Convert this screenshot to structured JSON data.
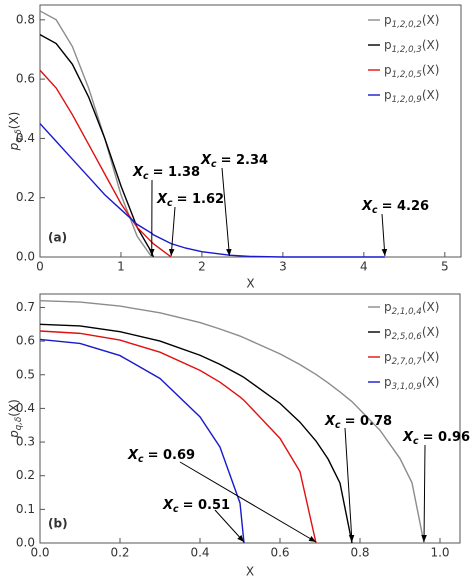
{
  "chart_data": [
    {
      "type": "line",
      "panel_label": "(a)",
      "x_label": "X",
      "y_label": {
        "main": "p",
        "sub": "q,δ",
        "tail": "(X)"
      },
      "xlim": [
        0,
        5.2
      ],
      "ylim": [
        0,
        0.85
      ],
      "xticks": [
        0,
        1,
        2,
        3,
        4,
        5
      ],
      "yticks": [
        {
          "value": 0,
          "label": "0.0"
        },
        0.2,
        0.4,
        0.6,
        0.8
      ],
      "legend": "top-right",
      "grid": false,
      "x": [
        0,
        0.2,
        0.4,
        0.6,
        0.8,
        1.0,
        1.2,
        1.38,
        1.4,
        1.62,
        1.8,
        2.0,
        2.34,
        2.6,
        3.0,
        3.5,
        4.0,
        4.26
      ],
      "series": [
        {
          "name": {
            "main": "p",
            "sub": "1,2,0,2",
            "tail": "(X)"
          },
          "color": "#8c8c8c",
          "values": [
            0.83,
            0.8,
            0.71,
            0.57,
            0.4,
            0.21,
            0.07,
            0.0,
            null,
            null,
            null,
            null,
            null,
            null,
            null,
            null,
            null,
            null
          ]
        },
        {
          "name": {
            "main": "p",
            "sub": "1,2,0,3",
            "tail": "(X)"
          },
          "color": "#000000",
          "values": [
            0.75,
            0.72,
            0.65,
            0.54,
            0.4,
            0.24,
            0.1,
            0.015,
            0.0,
            null,
            null,
            null,
            null,
            null,
            null,
            null,
            null,
            null
          ]
        },
        {
          "name": {
            "main": "p",
            "sub": "1,2,0,5",
            "tail": "(X)"
          },
          "color": "#e01010",
          "values": [
            0.63,
            0.57,
            0.48,
            0.38,
            0.28,
            0.18,
            0.1,
            0.05,
            0.045,
            0.0,
            null,
            null,
            null,
            null,
            null,
            null,
            null,
            null
          ]
        },
        {
          "name": {
            "main": "p",
            "sub": "1,2,0,9",
            "tail": "(X)"
          },
          "color": "#1a1acc",
          "values": [
            0.45,
            0.39,
            0.33,
            0.27,
            0.21,
            0.16,
            0.11,
            0.08,
            0.075,
            0.045,
            0.03,
            0.018,
            0.006,
            0.002,
            0.0,
            0.0,
            0.0,
            0.0
          ]
        }
      ],
      "annotations": [
        {
          "symbol": "X",
          "sub": "c",
          "text": "= 1.38",
          "x": 1.38
        },
        {
          "symbol": "X",
          "sub": "c",
          "text": "= 1.62",
          "x": 1.62
        },
        {
          "symbol": "X",
          "sub": "c",
          "text": "= 2.34",
          "x": 2.34
        },
        {
          "symbol": "X",
          "sub": "c",
          "text": "= 4.26",
          "x": 4.26
        }
      ]
    },
    {
      "type": "line",
      "panel_label": "(b)",
      "x_label": "X",
      "y_label": {
        "main": "p",
        "sub": "q,δ",
        "tail": "(X)"
      },
      "xlim": [
        0,
        1.05
      ],
      "ylim": [
        0,
        0.74
      ],
      "xticks": [
        {
          "value": 0,
          "label": "0.0"
        },
        0.2,
        0.4,
        0.6,
        0.8,
        {
          "value": 1,
          "label": "1.0"
        }
      ],
      "yticks": [
        {
          "value": 0,
          "label": "0.0"
        },
        0.1,
        0.2,
        0.3,
        0.4,
        0.5,
        0.6,
        0.7
      ],
      "legend": "top-right",
      "grid": false,
      "x": [
        0,
        0.1,
        0.2,
        0.3,
        0.4,
        0.45,
        0.5,
        0.51,
        0.6,
        0.65,
        0.69,
        0.72,
        0.75,
        0.78,
        0.85,
        0.9,
        0.93,
        0.96
      ],
      "series": [
        {
          "name": {
            "main": "p",
            "sub": "2,1,0,4",
            "tail": "(X)"
          },
          "color": "#8c8c8c",
          "values": [
            0.72,
            0.716,
            0.704,
            0.684,
            0.655,
            0.636,
            0.615,
            0.61,
            0.562,
            0.53,
            0.501,
            0.476,
            0.449,
            0.42,
            0.335,
            0.251,
            0.179,
            0.0
          ]
        },
        {
          "name": {
            "main": "p",
            "sub": "2,5,0,6",
            "tail": "(X)"
          },
          "color": "#000000",
          "values": [
            0.65,
            0.645,
            0.628,
            0.6,
            0.558,
            0.531,
            0.499,
            0.492,
            0.415,
            0.359,
            0.303,
            0.25,
            0.178,
            0.0,
            null,
            null,
            null,
            null
          ]
        },
        {
          "name": {
            "main": "p",
            "sub": "2,7,0,7",
            "tail": "(X)"
          },
          "color": "#e01010",
          "values": [
            0.63,
            0.623,
            0.603,
            0.567,
            0.513,
            0.478,
            0.434,
            0.424,
            0.311,
            0.212,
            0.0,
            null,
            null,
            null,
            null,
            null,
            null,
            null
          ]
        },
        {
          "name": {
            "main": "p",
            "sub": "3,1,0,9",
            "tail": "(X)"
          },
          "color": "#1a1acc",
          "values": [
            0.605,
            0.593,
            0.557,
            0.489,
            0.375,
            0.285,
            0.119,
            0.0,
            null,
            null,
            null,
            null,
            null,
            null,
            null,
            null,
            null,
            null
          ]
        }
      ],
      "annotations": [
        {
          "symbol": "X",
          "sub": "c",
          "text": "= 0.96",
          "x": 0.96
        },
        {
          "symbol": "X",
          "sub": "c",
          "text": "= 0.78",
          "x": 0.78
        },
        {
          "symbol": "X",
          "sub": "c",
          "text": "= 0.69",
          "x": 0.69
        },
        {
          "symbol": "X",
          "sub": "c",
          "text": "= 0.51",
          "x": 0.51
        }
      ]
    }
  ]
}
